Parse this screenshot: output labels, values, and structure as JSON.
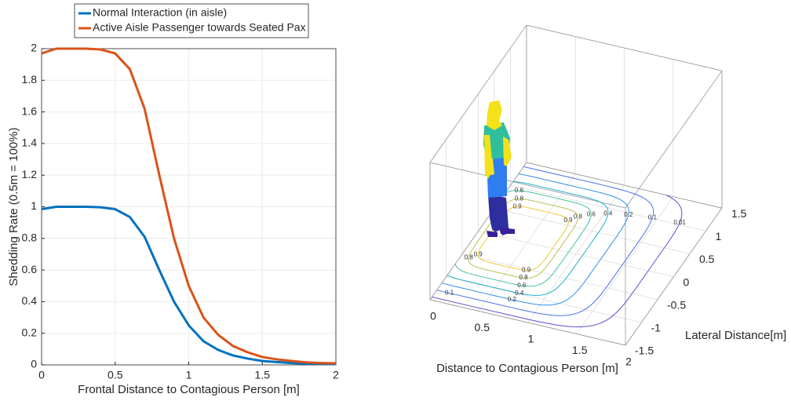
{
  "chart_data": [
    {
      "type": "line",
      "xlabel": "Frontal Distance to Contagious Person [m]",
      "ylabel": "Shedding Rate (0.5m = 100%)",
      "x": [
        0,
        0.1,
        0.2,
        0.3,
        0.4,
        0.5,
        0.6,
        0.7,
        0.8,
        0.9,
        1.0,
        1.1,
        1.2,
        1.3,
        1.4,
        1.5,
        1.6,
        1.7,
        1.8,
        1.9,
        2.0
      ],
      "series": [
        {
          "name": "Normal Interaction (in aisle)",
          "color": "#0072bd",
          "values": [
            0.985,
            1.0,
            1.0,
            1.0,
            0.997,
            0.985,
            0.935,
            0.81,
            0.6,
            0.4,
            0.25,
            0.15,
            0.095,
            0.06,
            0.04,
            0.025,
            0.018,
            0.012,
            0.008,
            0.006,
            0.005
          ]
        },
        {
          "name": "Active Aisle Passenger towards Seated Pax",
          "color": "#d95319",
          "values": [
            1.97,
            2.0,
            2.0,
            2.0,
            1.995,
            1.97,
            1.87,
            1.62,
            1.2,
            0.8,
            0.5,
            0.3,
            0.19,
            0.12,
            0.08,
            0.05,
            0.035,
            0.025,
            0.016,
            0.012,
            0.01
          ]
        }
      ],
      "xlim": [
        0,
        2
      ],
      "ylim": [
        0,
        2
      ],
      "xticks": [
        0,
        0.5,
        1,
        1.5,
        2
      ],
      "yticks": [
        0,
        0.2,
        0.4,
        0.6,
        0.8,
        1,
        1.2,
        1.4,
        1.6,
        1.8,
        2
      ],
      "grid": true,
      "legend": "top"
    },
    {
      "type": "contour3d",
      "xlabel": "Distance to Contagious Person [m]",
      "ylabel": "Lateral Distance[m]",
      "xlim": [
        0,
        2
      ],
      "ylim": [
        -1.5,
        1.5
      ],
      "xticks": [
        0,
        0.5,
        1,
        1.5,
        2
      ],
      "yticks": [
        -1.5,
        -1,
        -0.5,
        0,
        0.5,
        1,
        1.5
      ],
      "levels": [
        0.01,
        0.1,
        0.2,
        0.4,
        0.6,
        0.8,
        0.9
      ],
      "colors": [
        "#5b4fd0",
        "#4a6ee8",
        "#2f8fe8",
        "#1fb0cf",
        "#43c296",
        "#b8c250",
        "#f0c83a"
      ],
      "grid": true
    }
  ]
}
